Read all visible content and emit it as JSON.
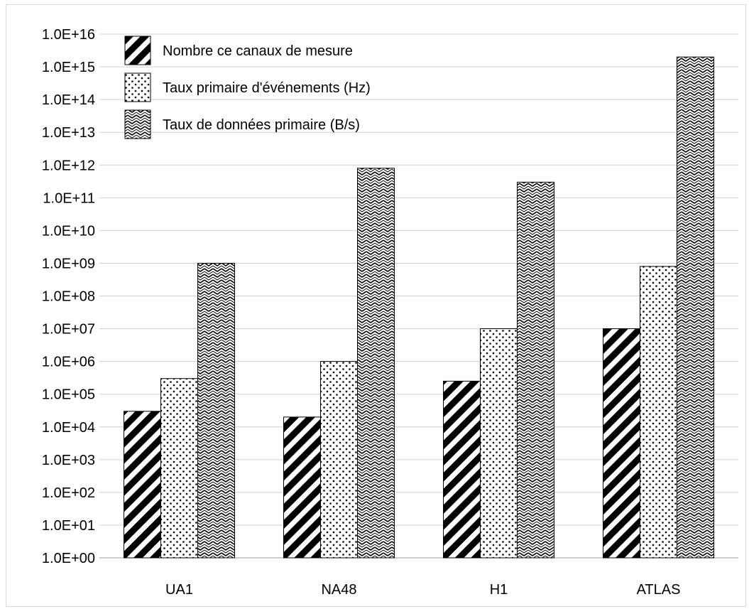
{
  "chart_data": {
    "type": "bar",
    "yscale": "log",
    "ylim": [
      1,
      1e+16
    ],
    "y_tick_labels": [
      "1.0E+00",
      "1.0E+01",
      "1.0E+02",
      "1.0E+03",
      "1.0E+04",
      "1.0E+05",
      "1.0E+06",
      "1.0E+07",
      "1.0E+08",
      "1.0E+09",
      "1.0E+10",
      "1.0E+11",
      "1.0E+12",
      "1.0E+13",
      "1.0E+14",
      "1.0E+15",
      "1.0E+16"
    ],
    "categories": [
      "UA1",
      "NA48",
      "H1",
      "ATLAS"
    ],
    "grid": true,
    "legend_position": "top-left",
    "series": [
      {
        "name": "Nombre ce canaux de mesure",
        "pattern": "diagonal-stripes",
        "values": [
          30000,
          20000,
          250000,
          10000000
        ]
      },
      {
        "name": "Taux primaire d'événements (Hz)",
        "pattern": "dots",
        "values": [
          300000,
          1000000,
          10000000,
          800000000
        ]
      },
      {
        "name": "Taux de données primaire (B/s)",
        "pattern": "zigzag",
        "values": [
          1000000000,
          800000000000,
          300000000000,
          2000000000000000
        ]
      }
    ],
    "colors": {
      "stroke": "#000000",
      "grid": "#d0d0d0",
      "background": "#ffffff"
    }
  }
}
